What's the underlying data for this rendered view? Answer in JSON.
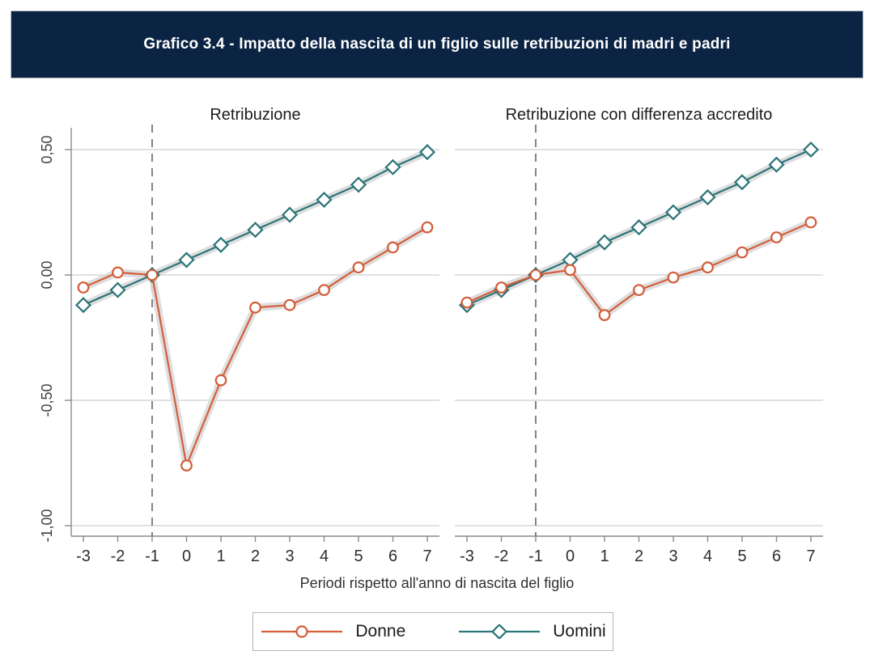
{
  "header": {
    "title": "Grafico 3.4 - Impatto della nascita di un figlio sulle retribuzioni di madri e padri",
    "bar_color": "#0b2443"
  },
  "chart_data": {
    "type": "line",
    "x": [
      -3,
      -2,
      -1,
      0,
      1,
      2,
      3,
      4,
      5,
      6,
      7
    ],
    "xlabel": "Periodi rispetto all'anno di nascita del figlio",
    "ylim": [
      -1.04,
      0.59
    ],
    "yticks": [
      {
        "value": 0.5,
        "label": "0,50"
      },
      {
        "value": 0.0,
        "label": "0,00"
      },
      {
        "value": -0.5,
        "label": "-0,50"
      },
      {
        "value": -1.0,
        "label": "-1,00"
      }
    ],
    "grid": true,
    "vline_x": -1,
    "band_color": "#dadada",
    "band_halfwidth": 0.015,
    "legend_position": "bottom",
    "panels": [
      {
        "title": "Retribuzione",
        "series": [
          {
            "name": "Donne",
            "marker": "circle",
            "color": "#d35e3b",
            "values": [
              -0.05,
              0.01,
              0.0,
              -0.76,
              -0.42,
              -0.13,
              -0.12,
              -0.06,
              0.03,
              0.11,
              0.19
            ]
          },
          {
            "name": "Uomini",
            "marker": "diamond",
            "color": "#2b7478",
            "values": [
              -0.12,
              -0.06,
              0.0,
              0.06,
              0.12,
              0.18,
              0.24,
              0.3,
              0.36,
              0.43,
              0.49
            ]
          }
        ]
      },
      {
        "title": "Retribuzione con differenza accredito",
        "series": [
          {
            "name": "Donne",
            "marker": "circle",
            "color": "#d35e3b",
            "values": [
              -0.11,
              -0.05,
              0.0,
              0.02,
              -0.16,
              -0.06,
              -0.01,
              0.03,
              0.09,
              0.15,
              0.21
            ]
          },
          {
            "name": "Uomini",
            "marker": "diamond",
            "color": "#2b7478",
            "values": [
              -0.12,
              -0.06,
              0.0,
              0.06,
              0.13,
              0.19,
              0.25,
              0.31,
              0.37,
              0.44,
              0.5
            ]
          }
        ]
      }
    ]
  },
  "legend": {
    "items": [
      {
        "label": "Donne",
        "marker": "circle",
        "color": "#d35e3b"
      },
      {
        "label": "Uomini",
        "marker": "diamond",
        "color": "#2b7478"
      }
    ]
  }
}
